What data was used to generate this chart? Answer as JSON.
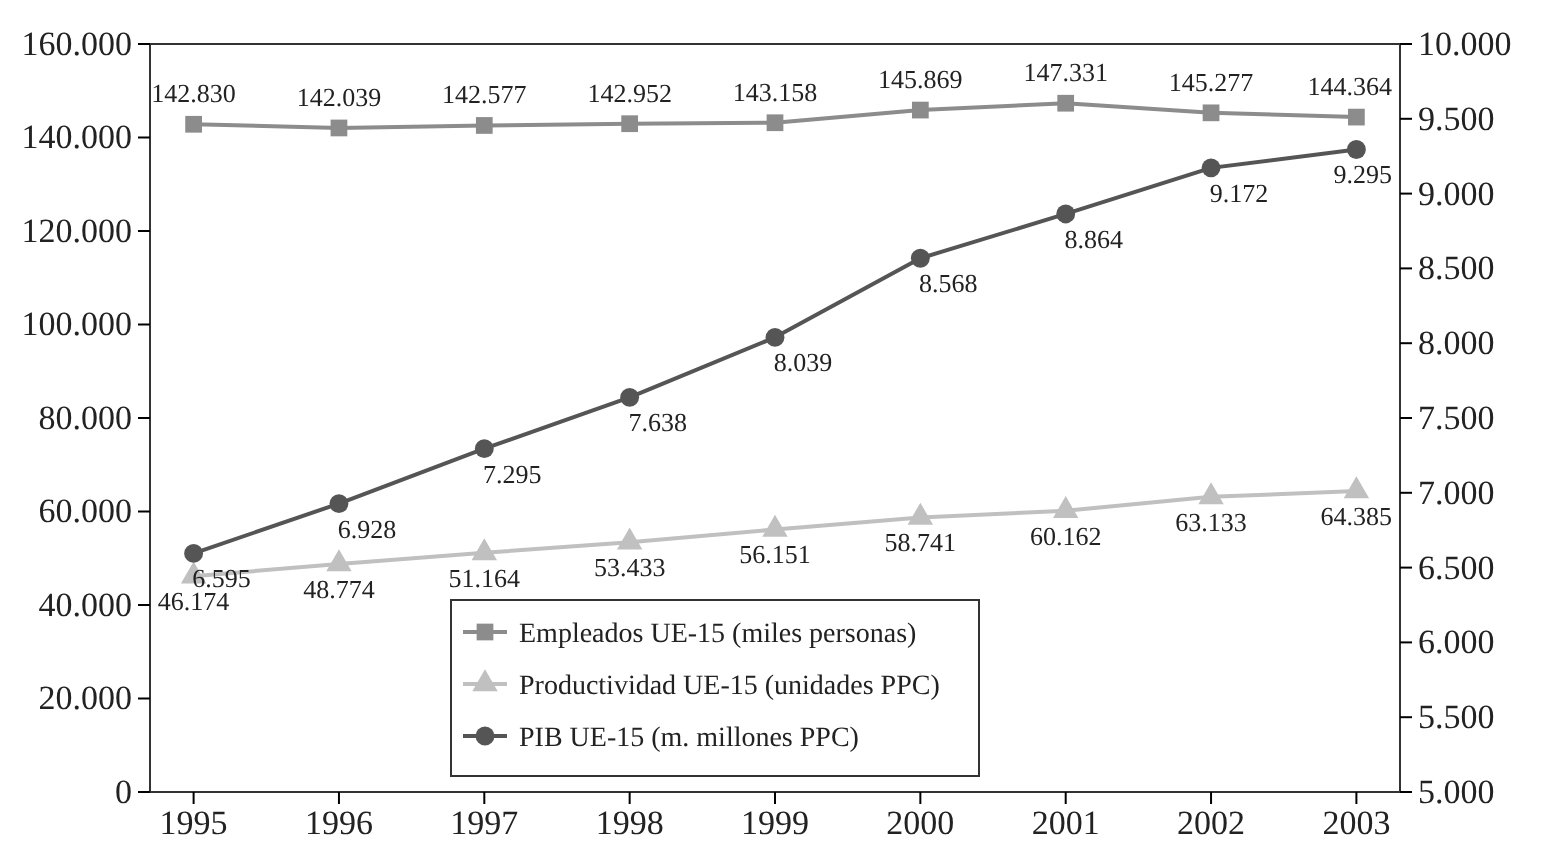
{
  "chart_data": {
    "type": "line",
    "categories": [
      "1995",
      "1996",
      "1997",
      "1998",
      "1999",
      "2000",
      "2001",
      "2002",
      "2003"
    ],
    "ylim": [
      0,
      160000
    ],
    "yticks": [
      {
        "value": 0,
        "label": "0"
      },
      {
        "value": 20000,
        "label": "20.000"
      },
      {
        "value": 40000,
        "label": "40.000"
      },
      {
        "value": 60000,
        "label": "60.000"
      },
      {
        "value": 80000,
        "label": "80.000"
      },
      {
        "value": 100000,
        "label": "100.000"
      },
      {
        "value": 120000,
        "label": "120.000"
      },
      {
        "value": 140000,
        "label": "140.000"
      },
      {
        "value": 160000,
        "label": "160.000"
      }
    ],
    "y2lim": [
      5000,
      10000
    ],
    "y2ticks": [
      {
        "value": 5000,
        "label": "5.000"
      },
      {
        "value": 5500,
        "label": "5.500"
      },
      {
        "value": 6000,
        "label": "6.000"
      },
      {
        "value": 6500,
        "label": "6.500"
      },
      {
        "value": 7000,
        "label": "7.000"
      },
      {
        "value": 7500,
        "label": "7.500"
      },
      {
        "value": 8000,
        "label": "8.000"
      },
      {
        "value": 8500,
        "label": "8.500"
      },
      {
        "value": 9000,
        "label": "9.000"
      },
      {
        "value": 9500,
        "label": "9.500"
      },
      {
        "value": 10000,
        "label": "10.000"
      }
    ],
    "legend": "bottom",
    "grid": false,
    "series": [
      {
        "name": "Empleados UE-15 (miles personas)",
        "color": "#8c8c8c",
        "marker": "square",
        "values": [
          142830,
          142039,
          142577,
          142952,
          143158,
          145869,
          147331,
          145277,
          144364
        ],
        "value_labels": [
          "142.830",
          "142.039",
          "142.577",
          "142.952",
          "143.158",
          "145.869",
          "147.331",
          "145.277",
          "144.364"
        ]
      },
      {
        "name": "Productividad UE-15 (unidades PPC)",
        "color": "#c0c0c0",
        "marker": "triangle",
        "values": [
          46174,
          48774,
          51164,
          53433,
          56151,
          58741,
          60162,
          63133,
          64385
        ],
        "value_labels": [
          "46.174",
          "48.774",
          "51.164",
          "53.433",
          "56.151",
          "58.741",
          "60.162",
          "63.133",
          "64.385"
        ]
      },
      {
        "name": "PIB UE-15 (m. millones PPC)",
        "color": "#555555",
        "marker": "circle",
        "axis": "y2",
        "values": [
          6595,
          6928,
          7295,
          7638,
          8039,
          8568,
          8864,
          9172,
          9295
        ],
        "value_labels": [
          "6.595",
          "6.928",
          "7.295",
          "7.638",
          "8.039",
          "8.568",
          "8.864",
          "9.172",
          "9.295"
        ]
      }
    ]
  }
}
